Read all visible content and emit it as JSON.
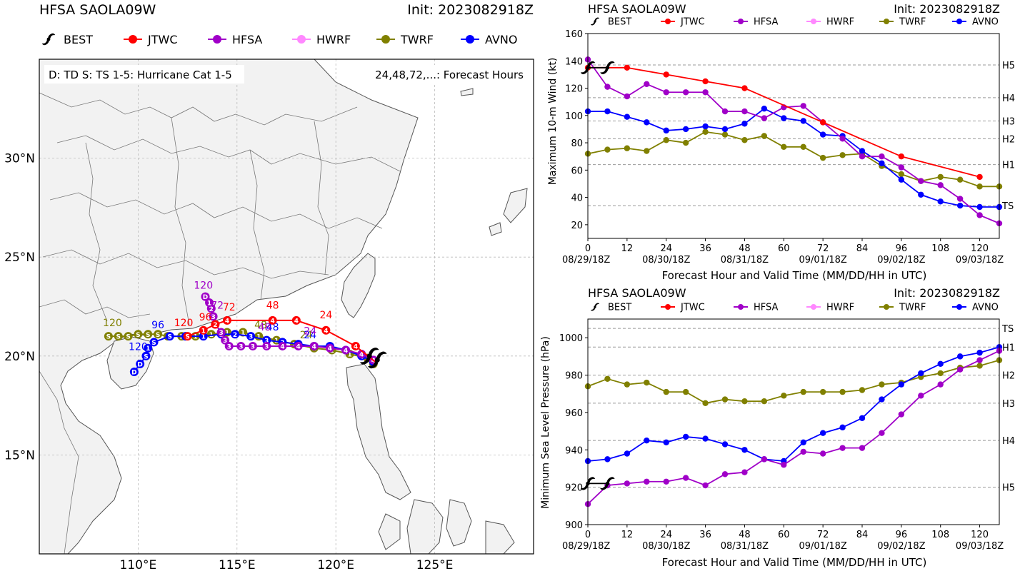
{
  "colors": {
    "best": "#000000",
    "jtwc": "#ff0000",
    "hfsa": "#a000c8",
    "hwrf": "#ff88ff",
    "twrf": "#808000",
    "avno": "#0000ff",
    "land": "#f2f2f2",
    "grid": "#bbbbbb",
    "ref": "#999999"
  },
  "legend": [
    {
      "key": "best",
      "label": "BEST",
      "icon": "typhoon-icon"
    },
    {
      "key": "jtwc",
      "label": "JTWC"
    },
    {
      "key": "hfsa",
      "label": "HFSA"
    },
    {
      "key": "hwrf",
      "label": "HWRF"
    },
    {
      "key": "twrf",
      "label": "TWRF"
    },
    {
      "key": "avno",
      "label": "AVNO"
    }
  ],
  "chart_data": [
    {
      "type": "scatter",
      "name": "track-map",
      "title": "HFSA SAOLA09W",
      "init_label": "Init: 2023082918Z",
      "info_left": "D: TD  S: TS  1-5: Hurricane Cat 1-5",
      "info_right": "24,48,72,...: Forecast Hours",
      "xlim": [
        105,
        130
      ],
      "ylim": [
        10,
        35
      ],
      "xticks": [
        {
          "v": 110,
          "label": "110°E"
        },
        {
          "v": 115,
          "label": "115°E"
        },
        {
          "v": 120,
          "label": "120°E"
        },
        {
          "v": 125,
          "label": "125°E"
        }
      ],
      "yticks": [
        {
          "v": 15,
          "label": "15°N"
        },
        {
          "v": 20,
          "label": "20°N"
        },
        {
          "v": 25,
          "label": "25°N"
        },
        {
          "v": 30,
          "label": "30°N"
        }
      ],
      "tracks": [
        {
          "key": "twrf",
          "points": [
            [
              121.9,
              19.6,
              "1"
            ],
            [
              121.6,
              19.9,
              "1"
            ],
            [
              120.7,
              20.1,
              "1"
            ],
            [
              119.8,
              20.3,
              "1"
            ],
            [
              118.9,
              20.4,
              "1"
            ],
            [
              117.9,
              20.6,
              "2"
            ],
            [
              117.0,
              20.8,
              "1"
            ],
            [
              116.1,
              21.0,
              "1"
            ],
            [
              115.3,
              21.2,
              "1"
            ],
            [
              114.5,
              21.2,
              "1"
            ],
            [
              113.7,
              21.1,
              "1"
            ],
            [
              112.9,
              21.0,
              "1"
            ],
            [
              112.2,
              21.0,
              "1"
            ],
            [
              111.5,
              21.0,
              "S"
            ],
            [
              111.0,
              21.1,
              "S"
            ],
            [
              110.5,
              21.1,
              "S"
            ],
            [
              110.0,
              21.1,
              "S"
            ],
            [
              109.5,
              21.0,
              "S"
            ],
            [
              109.0,
              21.0,
              "S"
            ],
            [
              108.5,
              21.0,
              "S"
            ]
          ],
          "hour_labels": [
            [
              118.5,
              20.9,
              "24"
            ],
            [
              116.2,
              21.4,
              "48"
            ],
            [
              108.7,
              21.5,
              "120"
            ]
          ]
        },
        {
          "key": "avno",
          "points": [
            [
              121.9,
              19.7,
              "4"
            ],
            [
              121.3,
              20.0,
              "4"
            ],
            [
              120.5,
              20.3,
              "4"
            ],
            [
              119.7,
              20.5,
              "4"
            ],
            [
              118.9,
              20.5,
              "4"
            ],
            [
              118.1,
              20.6,
              "4"
            ],
            [
              117.3,
              20.7,
              "3"
            ],
            [
              116.5,
              20.8,
              "3"
            ],
            [
              115.7,
              21.0,
              "3"
            ],
            [
              114.9,
              21.1,
              "2"
            ],
            [
              114.2,
              21.1,
              "1"
            ],
            [
              113.3,
              21.0,
              "1"
            ],
            [
              112.4,
              21.0,
              "S"
            ],
            [
              111.6,
              21.0,
              "S"
            ],
            [
              110.8,
              20.7,
              "S"
            ],
            [
              110.5,
              20.4,
              "1"
            ],
            [
              110.4,
              20.0,
              "S"
            ],
            [
              110.1,
              19.6,
              "D"
            ],
            [
              109.8,
              19.2,
              "D"
            ]
          ],
          "hour_labels": [
            [
              118.7,
              20.9,
              "24"
            ],
            [
              116.8,
              21.3,
              "48"
            ],
            [
              111.0,
              21.4,
              "96"
            ],
            [
              110.0,
              20.3,
              "120"
            ]
          ]
        },
        {
          "key": "hfsa",
          "points": [
            [
              121.9,
              19.8,
              "4"
            ],
            [
              121.3,
              20.1,
              "4"
            ],
            [
              120.5,
              20.3,
              "4"
            ],
            [
              119.7,
              20.4,
              "4"
            ],
            [
              118.9,
              20.5,
              "4"
            ],
            [
              118.1,
              20.5,
              "4"
            ],
            [
              117.3,
              20.5,
              "4"
            ],
            [
              116.5,
              20.5,
              "3"
            ],
            [
              115.8,
              20.5,
              "3"
            ],
            [
              115.2,
              20.5,
              "3"
            ],
            [
              114.6,
              20.5,
              "3"
            ],
            [
              114.4,
              20.8,
              "3"
            ],
            [
              114.2,
              21.2,
              "3"
            ],
            [
              113.9,
              21.6,
              "3"
            ],
            [
              113.8,
              22.0,
              "3"
            ],
            [
              113.7,
              22.4,
              "2"
            ],
            [
              113.6,
              22.7,
              "1"
            ],
            [
              113.4,
              23.0,
              "D"
            ]
          ],
          "hour_labels": [
            [
              118.7,
              21.1,
              "24"
            ],
            [
              116.4,
              21.3,
              "48"
            ],
            [
              114.0,
              22.4,
              "72"
            ],
            [
              113.3,
              23.4,
              "120"
            ]
          ]
        },
        {
          "key": "jtwc",
          "points": [
            [
              122.0,
              19.7,
              ""
            ],
            [
              121.0,
              20.5,
              "4"
            ],
            [
              119.5,
              21.3,
              "4"
            ],
            [
              118.0,
              21.8,
              "4"
            ],
            [
              116.8,
              21.8,
              "4"
            ],
            [
              114.5,
              21.8,
              "4"
            ],
            [
              113.9,
              21.6,
              "2"
            ],
            [
              113.3,
              21.3,
              "1"
            ],
            [
              112.5,
              21.0,
              "S"
            ]
          ],
          "hour_labels": [
            [
              119.5,
              21.9,
              "24"
            ],
            [
              116.8,
              22.4,
              "48"
            ],
            [
              114.6,
              22.3,
              "72"
            ],
            [
              113.4,
              21.8,
              "96"
            ],
            [
              112.3,
              21.5,
              "120"
            ]
          ]
        }
      ],
      "best_markers": [
        [
          122.1,
          19.8
        ],
        [
          121.7,
          20.0
        ]
      ]
    },
    {
      "type": "line",
      "name": "intensity-wind",
      "title": "HFSA SAOLA09W",
      "init_label": "Init: 2023082918Z",
      "ylabel": "Maximum 10-m Wind (kt)",
      "xlabel": "Forecast Hour and Valid Time (MM/DD/HH in UTC)",
      "xlim": [
        0,
        126
      ],
      "ylim": [
        10,
        160
      ],
      "xticks": [
        {
          "v": 0,
          "label": "0"
        },
        {
          "v": 12,
          "label": "12"
        },
        {
          "v": 24,
          "label": "24"
        },
        {
          "v": 36,
          "label": "36"
        },
        {
          "v": 48,
          "label": "48"
        },
        {
          "v": 60,
          "label": "60"
        },
        {
          "v": 72,
          "label": "72"
        },
        {
          "v": 84,
          "label": "84"
        },
        {
          "v": 96,
          "label": "96"
        },
        {
          "v": 108,
          "label": "108"
        },
        {
          "v": 120,
          "label": "120"
        }
      ],
      "date_ticks": [
        {
          "v": 0,
          "label": "08/29/18Z"
        },
        {
          "v": 24,
          "label": "08/30/18Z"
        },
        {
          "v": 48,
          "label": "08/31/18Z"
        },
        {
          "v": 72,
          "label": "09/01/18Z"
        },
        {
          "v": 96,
          "label": "09/02/18Z"
        },
        {
          "v": 120,
          "label": "09/03/18Z"
        }
      ],
      "yticks": [
        20,
        40,
        60,
        80,
        100,
        120,
        140,
        160
      ],
      "ref_lines": [
        {
          "v": 34,
          "label": "TS"
        },
        {
          "v": 64,
          "label": "H1"
        },
        {
          "v": 83,
          "label": "H2"
        },
        {
          "v": 96,
          "label": "H3"
        },
        {
          "v": 113,
          "label": "H4"
        },
        {
          "v": 137,
          "label": "H5"
        }
      ],
      "series": [
        {
          "key": "twrf",
          "x": [
            0,
            6,
            12,
            18,
            24,
            30,
            36,
            42,
            48,
            54,
            60,
            66,
            72,
            78,
            84,
            90,
            96,
            102,
            108,
            114,
            120,
            126
          ],
          "y": [
            72,
            75,
            76,
            74,
            82,
            80,
            88,
            86,
            82,
            85,
            77,
            77,
            69,
            71,
            72,
            63,
            57,
            52,
            55,
            53,
            48,
            48
          ]
        },
        {
          "key": "avno",
          "x": [
            0,
            6,
            12,
            18,
            24,
            30,
            36,
            42,
            48,
            54,
            60,
            66,
            72,
            78,
            84,
            90,
            96,
            102,
            108,
            114,
            120,
            126
          ],
          "y": [
            103,
            103,
            99,
            95,
            89,
            90,
            92,
            90,
            94,
            105,
            98,
            96,
            86,
            85,
            74,
            65,
            53,
            42,
            37,
            34,
            33,
            33
          ]
        },
        {
          "key": "hfsa",
          "x": [
            0,
            6,
            12,
            18,
            24,
            30,
            36,
            42,
            48,
            54,
            60,
            66,
            72,
            78,
            84,
            90,
            96,
            102,
            108,
            114,
            120,
            126
          ],
          "y": [
            141,
            121,
            114,
            123,
            117,
            117,
            117,
            103,
            103,
            98,
            106,
            107,
            95,
            83,
            70,
            70,
            62,
            52,
            49,
            39,
            27,
            21
          ]
        },
        {
          "key": "jtwc",
          "x": [
            0,
            12,
            24,
            36,
            48,
            72,
            96,
            120
          ],
          "y": [
            135,
            135,
            130,
            125,
            120,
            95,
            70,
            55
          ]
        }
      ],
      "best_markers": [
        [
          0,
          135
        ],
        [
          6,
          135
        ]
      ]
    },
    {
      "type": "line",
      "name": "intensity-pressure",
      "title": "HFSA SAOLA09W",
      "init_label": "Init: 2023082918Z",
      "ylabel": "Minimum Sea Level Pressure (hPa)",
      "xlabel": "Forecast Hour and Valid Time (MM/DD/HH in UTC)",
      "xlim": [
        0,
        126
      ],
      "ylim": [
        900,
        1010
      ],
      "xticks": [
        {
          "v": 0,
          "label": "0"
        },
        {
          "v": 12,
          "label": "12"
        },
        {
          "v": 24,
          "label": "24"
        },
        {
          "v": 36,
          "label": "36"
        },
        {
          "v": 48,
          "label": "48"
        },
        {
          "v": 60,
          "label": "60"
        },
        {
          "v": 72,
          "label": "72"
        },
        {
          "v": 84,
          "label": "84"
        },
        {
          "v": 96,
          "label": "96"
        },
        {
          "v": 108,
          "label": "108"
        },
        {
          "v": 120,
          "label": "120"
        }
      ],
      "date_ticks": [
        {
          "v": 0,
          "label": "08/29/18Z"
        },
        {
          "v": 24,
          "label": "08/30/18Z"
        },
        {
          "v": 48,
          "label": "08/31/18Z"
        },
        {
          "v": 72,
          "label": "09/01/18Z"
        },
        {
          "v": 96,
          "label": "09/02/18Z"
        },
        {
          "v": 120,
          "label": "09/03/18Z"
        }
      ],
      "yticks": [
        900,
        920,
        940,
        960,
        980,
        1000
      ],
      "ref_lines": [
        {
          "v": 1005,
          "label": "TS"
        },
        {
          "v": 995,
          "label": "H1"
        },
        {
          "v": 980,
          "label": "H2"
        },
        {
          "v": 965,
          "label": "H3"
        },
        {
          "v": 945,
          "label": "H4"
        },
        {
          "v": 920,
          "label": "H5"
        }
      ],
      "series": [
        {
          "key": "twrf",
          "x": [
            0,
            6,
            12,
            18,
            24,
            30,
            36,
            42,
            48,
            54,
            60,
            66,
            72,
            78,
            84,
            90,
            96,
            102,
            108,
            114,
            120,
            126
          ],
          "y": [
            974,
            978,
            975,
            976,
            971,
            971,
            965,
            967,
            966,
            966,
            969,
            971,
            971,
            971,
            972,
            975,
            976,
            979,
            981,
            984,
            985,
            988
          ]
        },
        {
          "key": "avno",
          "x": [
            0,
            6,
            12,
            18,
            24,
            30,
            36,
            42,
            48,
            54,
            60,
            66,
            72,
            78,
            84,
            90,
            96,
            102,
            108,
            114,
            120,
            126
          ],
          "y": [
            934,
            935,
            938,
            945,
            944,
            947,
            946,
            943,
            940,
            935,
            934,
            944,
            949,
            952,
            957,
            967,
            975,
            981,
            986,
            990,
            992,
            995
          ]
        },
        {
          "key": "hfsa",
          "x": [
            0,
            6,
            12,
            18,
            24,
            30,
            36,
            42,
            48,
            54,
            60,
            66,
            72,
            78,
            84,
            90,
            96,
            102,
            108,
            114,
            120,
            126
          ],
          "y": [
            911,
            921,
            922,
            923,
            923,
            925,
            921,
            927,
            928,
            935,
            932,
            939,
            938,
            941,
            941,
            949,
            959,
            969,
            975,
            983,
            988,
            993
          ]
        }
      ],
      "best_markers": [
        [
          0,
          922
        ],
        [
          6,
          922
        ]
      ]
    }
  ]
}
